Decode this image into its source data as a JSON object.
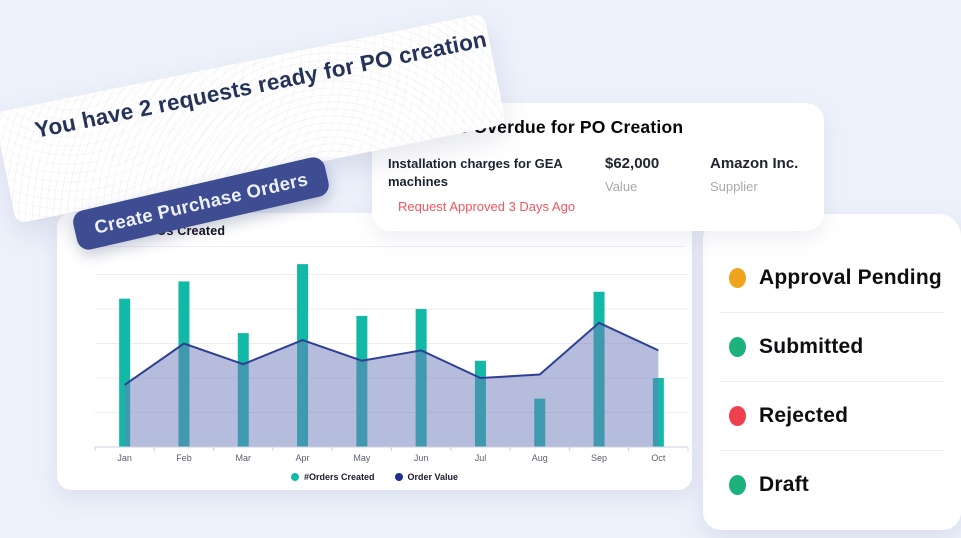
{
  "banner": {
    "headline": "You have 2 requests ready for PO creation",
    "button_label": "Create Purchase Orders",
    "button_color": "#3e4c91"
  },
  "overdue_card": {
    "title": "Requests Overdue for PO Creation",
    "request": {
      "name": "Installation charges for GEA machines",
      "status": "Request Approved 3 Days Ago",
      "status_color": "#f4555e",
      "value": "$62,000",
      "value_label": "Value",
      "supplier": "Amazon Inc.",
      "supplier_label": "Supplier"
    }
  },
  "chart_data": {
    "type": "bar",
    "title": "Monthly POs Created",
    "categories": [
      "Jan",
      "Feb",
      "Mar",
      "Apr",
      "May",
      "Jun",
      "Jul",
      "Aug",
      "Sep",
      "Oct"
    ],
    "series": [
      {
        "name": "#Orders Created",
        "type": "bar",
        "color": "#12b9a6",
        "values": [
          43,
          48,
          33,
          53,
          38,
          40,
          25,
          14,
          45,
          20
        ]
      },
      {
        "name": "Order Value",
        "type": "area-line",
        "color": "#2e3f94",
        "fill": "rgba(110,122,184,0.5)",
        "values": [
          18,
          30,
          24,
          31,
          25,
          28,
          20,
          21,
          36,
          28
        ]
      }
    ],
    "ylim": [
      0,
      55
    ],
    "grid": "horizontal gridlines every 10 units, no y tick labels",
    "legend_position": "bottom-center",
    "xlabel": "",
    "ylabel": ""
  },
  "status_panel": {
    "items": [
      {
        "label": "Approval Pending",
        "color": "#f0a31c"
      },
      {
        "label": "Submitted",
        "color": "#1db17c"
      },
      {
        "label": "Rejected",
        "color": "#ee4150"
      },
      {
        "label": "Draft",
        "color": "#1db17c"
      }
    ]
  }
}
